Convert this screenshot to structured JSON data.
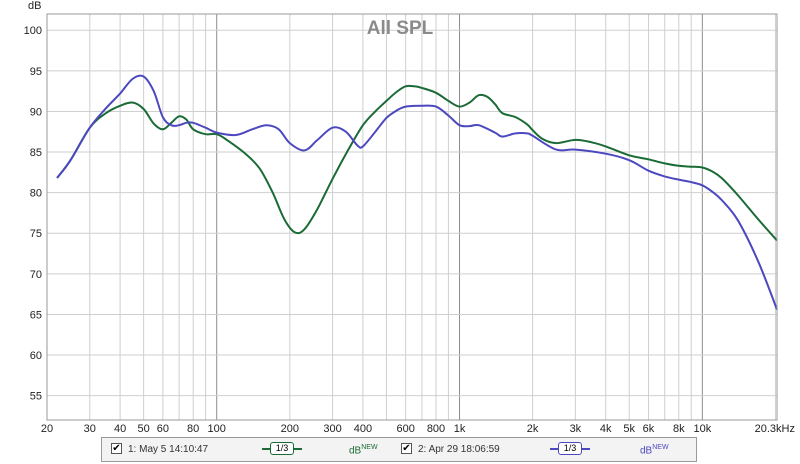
{
  "chart_data": {
    "type": "line",
    "title": "All SPL",
    "ylabel": "dB",
    "x_scale": "log",
    "xlim": [
      20,
      20300
    ],
    "ylim": [
      52,
      102
    ],
    "x_ticks": [
      20,
      30,
      40,
      50,
      60,
      80,
      100,
      200,
      300,
      400,
      600,
      800,
      1000,
      2000,
      3000,
      4000,
      5000,
      6000,
      8000,
      10000,
      20300
    ],
    "x_tick_labels": [
      "20",
      "30",
      "40",
      "50",
      "60",
      "80",
      "100",
      "200",
      "300",
      "400",
      "600",
      "800",
      "1k",
      "2k",
      "3k",
      "4k",
      "5k",
      "6k",
      "8k",
      "10k",
      "20.3kHz"
    ],
    "y_ticks": [
      55,
      60,
      65,
      70,
      75,
      80,
      85,
      90,
      95,
      100
    ],
    "grid": true,
    "series": [
      {
        "name": "1: May 5 14:10:47",
        "color": "#1a6b35",
        "points": [
          [
            22,
            81.8
          ],
          [
            25,
            84
          ],
          [
            30,
            88
          ],
          [
            35,
            89.8
          ],
          [
            40,
            90.7
          ],
          [
            45,
            91.1
          ],
          [
            50,
            90.3
          ],
          [
            55,
            88.5
          ],
          [
            60,
            87.8
          ],
          [
            65,
            88.6
          ],
          [
            70,
            89.4
          ],
          [
            75,
            89
          ],
          [
            80,
            87.8
          ],
          [
            90,
            87.2
          ],
          [
            100,
            87.2
          ],
          [
            110,
            86.5
          ],
          [
            130,
            84.9
          ],
          [
            150,
            83
          ],
          [
            170,
            80
          ],
          [
            190,
            76.7
          ],
          [
            210,
            75.1
          ],
          [
            230,
            75.5
          ],
          [
            260,
            78
          ],
          [
            300,
            81.7
          ],
          [
            350,
            85.4
          ],
          [
            400,
            88.3
          ],
          [
            450,
            90
          ],
          [
            500,
            91.3
          ],
          [
            550,
            92.4
          ],
          [
            600,
            93.1
          ],
          [
            650,
            93.1
          ],
          [
            700,
            92.9
          ],
          [
            800,
            92.3
          ],
          [
            900,
            91.3
          ],
          [
            1000,
            90.6
          ],
          [
            1100,
            91.1
          ],
          [
            1200,
            92
          ],
          [
            1300,
            91.8
          ],
          [
            1400,
            90.9
          ],
          [
            1500,
            89.8
          ],
          [
            1700,
            89.3
          ],
          [
            1900,
            88.4
          ],
          [
            2000,
            87.7
          ],
          [
            2200,
            86.6
          ],
          [
            2500,
            86.1
          ],
          [
            3000,
            86.5
          ],
          [
            3500,
            86.2
          ],
          [
            4000,
            85.7
          ],
          [
            5000,
            84.6
          ],
          [
            6000,
            84.1
          ],
          [
            7000,
            83.6
          ],
          [
            8000,
            83.3
          ],
          [
            9000,
            83.2
          ],
          [
            10000,
            83.1
          ],
          [
            11000,
            82.6
          ],
          [
            12000,
            81.8
          ],
          [
            14000,
            79.7
          ],
          [
            17000,
            76.7
          ],
          [
            20300,
            74.1
          ]
        ]
      },
      {
        "name": "2: Apr 29 18:06:59",
        "color": "#4c48bf",
        "points": [
          [
            22,
            81.8
          ],
          [
            25,
            84
          ],
          [
            30,
            88
          ],
          [
            35,
            90.4
          ],
          [
            40,
            92.2
          ],
          [
            45,
            94
          ],
          [
            50,
            94.3
          ],
          [
            55,
            92.5
          ],
          [
            60,
            89.3
          ],
          [
            65,
            88.3
          ],
          [
            70,
            88.3
          ],
          [
            75,
            88.6
          ],
          [
            80,
            88.6
          ],
          [
            90,
            88
          ],
          [
            100,
            87.4
          ],
          [
            120,
            87.1
          ],
          [
            140,
            87.8
          ],
          [
            160,
            88.3
          ],
          [
            180,
            87.8
          ],
          [
            200,
            86.1
          ],
          [
            230,
            85.2
          ],
          [
            260,
            86.5
          ],
          [
            300,
            88
          ],
          [
            340,
            87.5
          ],
          [
            380,
            85.8
          ],
          [
            400,
            85.7
          ],
          [
            450,
            87.5
          ],
          [
            500,
            89.2
          ],
          [
            550,
            90.1
          ],
          [
            600,
            90.6
          ],
          [
            700,
            90.7
          ],
          [
            800,
            90.6
          ],
          [
            900,
            89.5
          ],
          [
            1000,
            88.3
          ],
          [
            1100,
            88.2
          ],
          [
            1200,
            88.3
          ],
          [
            1400,
            87.4
          ],
          [
            1500,
            86.9
          ],
          [
            1700,
            87.3
          ],
          [
            1900,
            87.3
          ],
          [
            2000,
            87
          ],
          [
            2500,
            85.3
          ],
          [
            3000,
            85.3
          ],
          [
            4000,
            84.8
          ],
          [
            5000,
            84
          ],
          [
            6000,
            82.7
          ],
          [
            7000,
            82
          ],
          [
            8000,
            81.6
          ],
          [
            9000,
            81.3
          ],
          [
            10000,
            80.9
          ],
          [
            11000,
            80.1
          ],
          [
            12000,
            79.1
          ],
          [
            14000,
            76.6
          ],
          [
            17000,
            71.5
          ],
          [
            20300,
            65.6
          ]
        ]
      }
    ]
  },
  "legend": {
    "items": [
      {
        "label": "1: May 5 14:10:47",
        "smoothing": "1/3",
        "unit": "dB",
        "unit_sup": "NEW",
        "color": "#1a6b35"
      },
      {
        "label": "2: Apr 29 18:06:59",
        "smoothing": "1/3",
        "unit": "dB",
        "unit_sup": "NEW",
        "color": "#4c48bf"
      }
    ]
  }
}
